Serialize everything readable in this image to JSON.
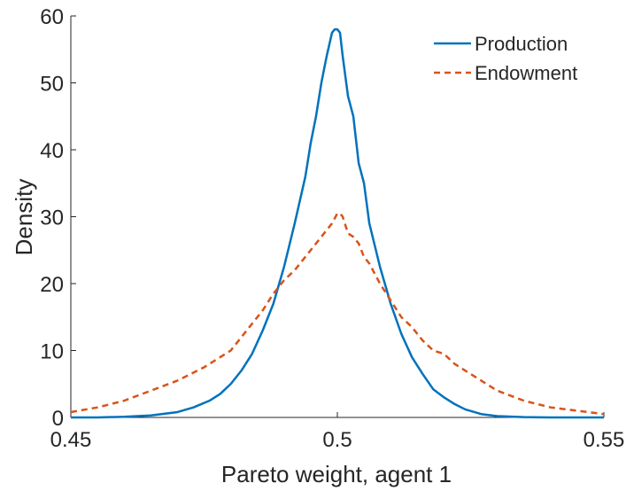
{
  "chart_data": {
    "type": "line",
    "title": "",
    "xlabel": "Pareto weight, agent 1",
    "ylabel": "Density",
    "xlim": [
      0.45,
      0.55
    ],
    "ylim": [
      0,
      60
    ],
    "xticks": [
      0.45,
      0.5,
      0.55
    ],
    "xtick_labels": [
      "0.45",
      "0.5",
      "0.55"
    ],
    "yticks": [
      0,
      10,
      20,
      30,
      40,
      50,
      60
    ],
    "ytick_labels": [
      "0",
      "10",
      "20",
      "30",
      "40",
      "50",
      "60"
    ],
    "grid": false,
    "legend_position": "top-right",
    "series": [
      {
        "name": "Production",
        "color": "#0072BD",
        "style": "solid",
        "x": [
          0.45,
          0.455,
          0.46,
          0.465,
          0.47,
          0.473,
          0.476,
          0.478,
          0.48,
          0.482,
          0.484,
          0.486,
          0.488,
          0.49,
          0.492,
          0.494,
          0.495,
          0.496,
          0.497,
          0.498,
          0.499,
          0.4995,
          0.5,
          0.5005,
          0.501,
          0.502,
          0.503,
          0.504,
          0.505,
          0.506,
          0.508,
          0.51,
          0.512,
          0.514,
          0.516,
          0.518,
          0.52,
          0.522,
          0.524,
          0.527,
          0.53,
          0.535,
          0.54,
          0.545,
          0.55
        ],
        "y": [
          0,
          0,
          0.1,
          0.3,
          0.8,
          1.5,
          2.5,
          3.5,
          5,
          7,
          9.5,
          13,
          17,
          22.5,
          29,
          36,
          41,
          45,
          50,
          54,
          57.5,
          58,
          58,
          57.5,
          54,
          48,
          45,
          38,
          35,
          29,
          22.5,
          17,
          12.5,
          9,
          6.5,
          4.2,
          3,
          2,
          1.2,
          0.5,
          0.2,
          0.05,
          0,
          0,
          0
        ]
      },
      {
        "name": "Endowment",
        "color": "#D95319",
        "style": "dashed",
        "x": [
          0.45,
          0.455,
          0.46,
          0.465,
          0.47,
          0.475,
          0.478,
          0.48,
          0.482,
          0.484,
          0.486,
          0.488,
          0.49,
          0.492,
          0.494,
          0.496,
          0.497,
          0.498,
          0.499,
          0.5,
          0.5005,
          0.501,
          0.502,
          0.503,
          0.504,
          0.505,
          0.506,
          0.508,
          0.51,
          0.512,
          0.514,
          0.516,
          0.518,
          0.52,
          0.522,
          0.525,
          0.53,
          0.535,
          0.54,
          0.545,
          0.55
        ],
        "y": [
          0.8,
          1.5,
          2.5,
          4,
          5.5,
          7.5,
          9,
          10,
          12,
          14,
          16,
          18.5,
          20.5,
          22,
          24,
          26,
          27,
          28,
          29,
          30.5,
          30.5,
          30,
          27.5,
          27,
          26,
          24,
          23,
          20,
          17.5,
          15,
          13.5,
          11.5,
          10,
          9.5,
          8,
          6.5,
          4,
          2.5,
          1.5,
          1,
          0.5
        ]
      }
    ]
  }
}
